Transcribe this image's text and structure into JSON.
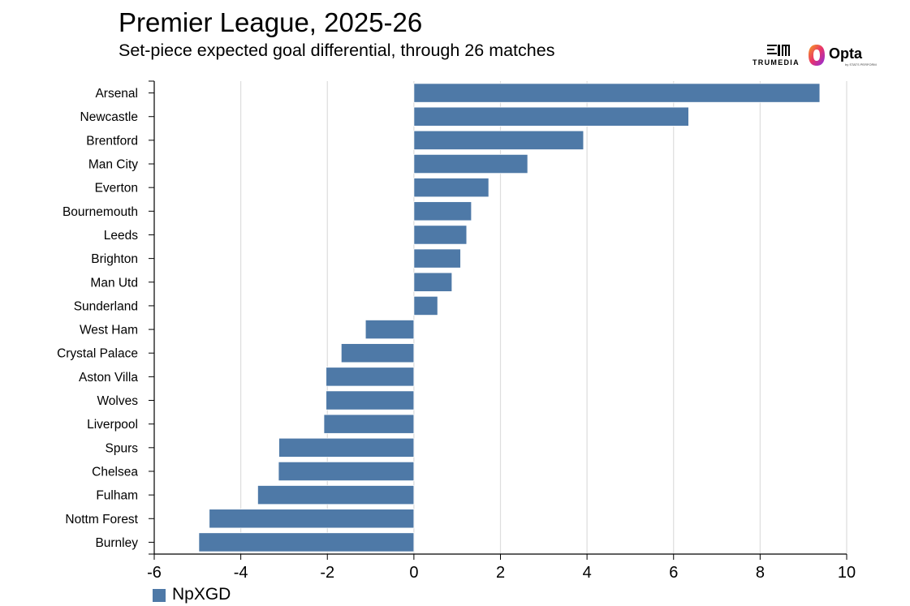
{
  "header": {
    "title": "Premier League, 2025-26",
    "subtitle": "Set-piece expected goal differential, through 26 matches"
  },
  "logos": {
    "trumedia": "TRUMEDIA",
    "opta": "Opta",
    "opta_sub": "by STATS PERFORM"
  },
  "colors": {
    "bar": "#4e79a7",
    "grid": "#dddddd",
    "axis": "#000000"
  },
  "chart_data": {
    "type": "bar",
    "orientation": "horizontal",
    "categories": [
      "Arsenal",
      "Newcastle",
      "Brentford",
      "Man City",
      "Everton",
      "Bournemouth",
      "Leeds",
      "Brighton",
      "Man Utd",
      "Sunderland",
      "West Ham",
      "Crystal Palace",
      "Aston Villa",
      "Wolves",
      "Liverpool",
      "Spurs",
      "Chelsea",
      "Fulham",
      "Nottm Forest",
      "Burnley"
    ],
    "series": [
      {
        "name": "NpXGD",
        "values": [
          9.38,
          6.35,
          3.92,
          2.63,
          1.73,
          1.33,
          1.22,
          1.08,
          0.88,
          0.55,
          -1.12,
          -1.68,
          -2.03,
          -2.03,
          -2.08,
          -3.12,
          -3.13,
          -3.61,
          -4.73,
          -4.97
        ]
      }
    ],
    "xlim": [
      -6,
      10
    ],
    "xticks": [
      -6,
      -4,
      -2,
      0,
      2,
      4,
      6,
      8,
      10
    ],
    "grid": true,
    "legend": "bottom-left"
  }
}
